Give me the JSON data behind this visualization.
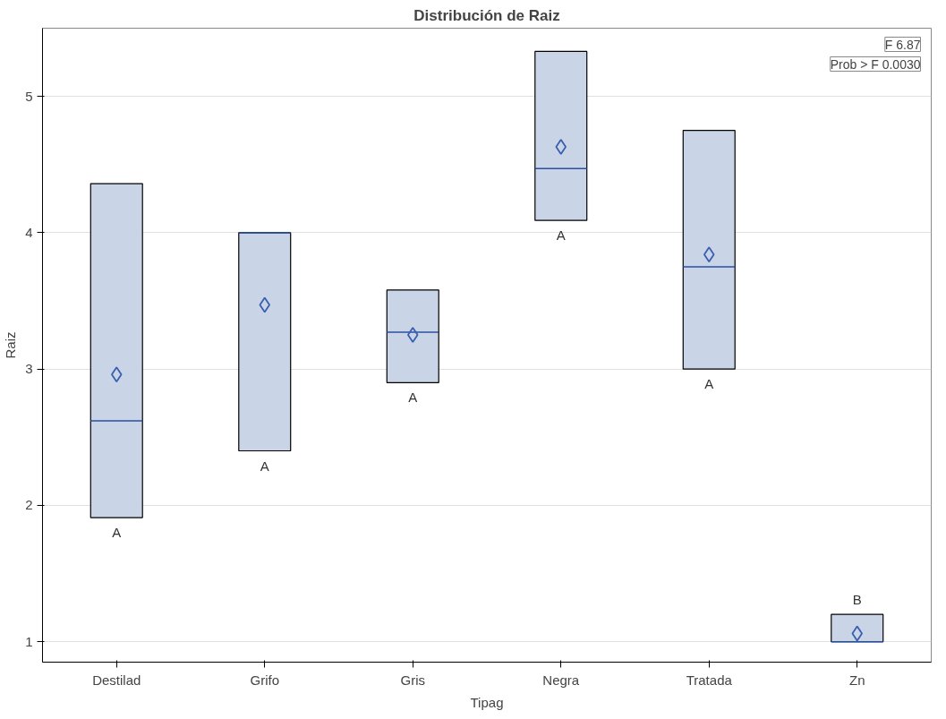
{
  "chart_data": {
    "type": "box",
    "title": "Distribución de Raiz",
    "xlabel": "Tipag",
    "ylabel": "Raiz",
    "categories": [
      "Destilad",
      "Grifo",
      "Gris",
      "Negra",
      "Tratada",
      "Zn"
    ],
    "boxes": [
      {
        "low": 1.91,
        "q1": 1.91,
        "median": 2.62,
        "q3": 4.36,
        "high": 4.36,
        "mean": 2.96
      },
      {
        "low": 2.4,
        "q1": 2.4,
        "median": 4.0,
        "q3": 4.0,
        "high": 4.0,
        "mean": 3.47
      },
      {
        "low": 2.9,
        "q1": 2.9,
        "median": 3.27,
        "q3": 3.58,
        "high": 3.58,
        "mean": 3.25
      },
      {
        "low": 4.09,
        "q1": 4.09,
        "median": 4.47,
        "q3": 5.33,
        "high": 5.33,
        "mean": 4.63
      },
      {
        "low": 3.0,
        "q1": 3.0,
        "median": 3.75,
        "q3": 4.75,
        "high": 4.75,
        "mean": 3.84
      },
      {
        "low": 1.0,
        "q1": 1.0,
        "median": 1.0,
        "q3": 1.2,
        "high": 1.2,
        "mean": 1.06
      }
    ],
    "color": "#c9d5e6",
    "marker": "diamond",
    "ylim": [
      0.85,
      5.5
    ],
    "yticks": [
      1,
      2,
      3,
      4,
      5
    ],
    "grid": "y",
    "annotations": [
      "F 6.87",
      "Prob > F 0.0030",
      {
        "text": "A",
        "x": "Destilad",
        "y": 1.91
      },
      {
        "text": "A",
        "x": "Grifo",
        "y": 2.4
      },
      {
        "text": "A",
        "x": "Gris",
        "y": 2.9
      },
      {
        "text": "A",
        "x": "Negra",
        "y": 4.09
      },
      {
        "text": "A",
        "x": "Tratada",
        "y": 3.0
      },
      {
        "text": "B",
        "x": "Zn",
        "y": 1.2
      }
    ]
  }
}
